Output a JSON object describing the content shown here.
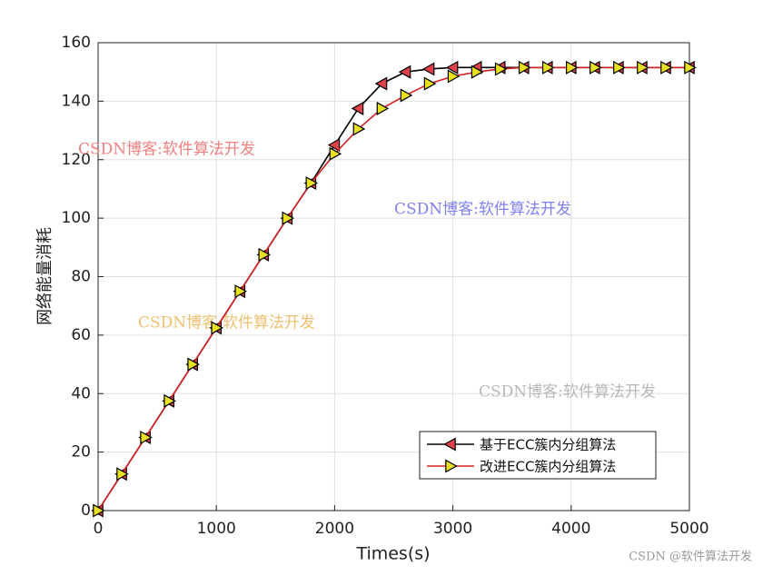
{
  "chart_data": {
    "type": "line",
    "xlabel": "Times(s)",
    "ylabel": "网络能量消耗",
    "x": [
      0,
      200,
      400,
      600,
      800,
      1000,
      1200,
      1400,
      1600,
      1800,
      2000,
      2200,
      2400,
      2600,
      2800,
      3000,
      3200,
      3400,
      3600,
      3800,
      4000,
      4200,
      4400,
      4600,
      4800,
      5000
    ],
    "series": [
      {
        "name": "基于ECC簇内分组算法",
        "color": "#000000",
        "marker": "triangle-left",
        "marker_color": "#e0404a",
        "values": [
          0,
          12.5,
          25,
          37.5,
          50,
          62.5,
          75,
          87.5,
          100,
          112,
          125,
          137.5,
          146,
          150,
          151,
          151.5,
          151.5,
          151.5,
          151.5,
          151.5,
          151.5,
          151.5,
          151.5,
          151.5,
          151.5,
          151.5
        ]
      },
      {
        "name": "改进ECC簇内分组算法",
        "color": "#d42020",
        "marker": "triangle-right",
        "marker_color": "#e8e020",
        "values": [
          0,
          12.5,
          25,
          37.5,
          50,
          62.5,
          75,
          87.5,
          100,
          112,
          122,
          130.5,
          137.5,
          142,
          146,
          148.5,
          150,
          151,
          151.5,
          151.5,
          151.5,
          151.5,
          151.5,
          151.5,
          151.5,
          151.5
        ]
      }
    ],
    "xlim": [
      0,
      5000
    ],
    "xticks": [
      0,
      1000,
      2000,
      3000,
      4000,
      5000
    ],
    "ylim": [
      0,
      160
    ],
    "yticks": [
      0,
      20,
      40,
      60,
      80,
      100,
      120,
      140,
      160
    ],
    "grid": true,
    "legend": "lower right",
    "annotations": [
      {
        "text": "CSDN博客:软件算法开发",
        "color": "#f08080"
      },
      {
        "text": "CSDN博客:软件算法开发",
        "color": "#8080f0"
      },
      {
        "text": "CSDN博客:软件算法开发",
        "color": "#f0c070"
      },
      {
        "text": "CSDN博客:软件算法开发",
        "color": "#b8b8b8"
      },
      {
        "text": "CSDN @软件算法开发",
        "color": "#999999"
      }
    ]
  }
}
